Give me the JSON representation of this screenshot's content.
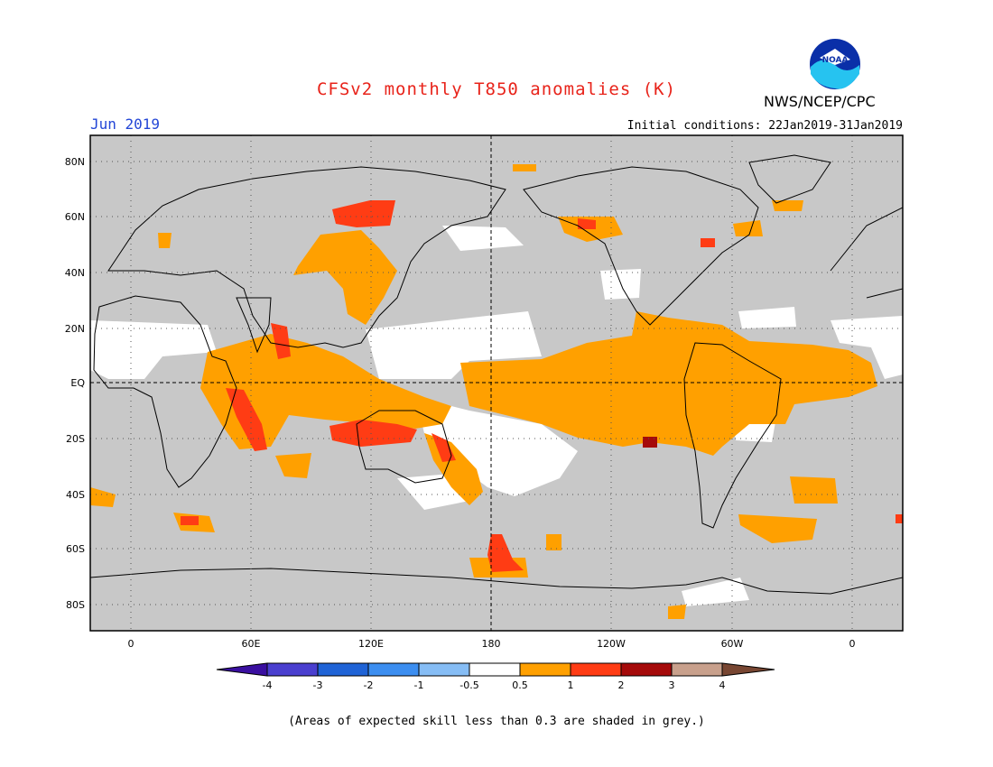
{
  "header": {
    "title": "CFSv2 monthly T850 anomalies (K)",
    "month": "Jun 2019",
    "initial_conditions": "Initial conditions: 22Jan2019-31Jan2019",
    "agency": "NWS/NCEP/CPC",
    "logo_text": "NOAA"
  },
  "map": {
    "lat_labels": [
      "80N",
      "60N",
      "40N",
      "20N",
      "EQ",
      "20S",
      "40S",
      "60S",
      "80S"
    ],
    "lon_labels": [
      "0",
      "60E",
      "120E",
      "180",
      "120W",
      "60W",
      "0"
    ]
  },
  "colorbar": {
    "tick_labels": [
      "-4",
      "-3",
      "-2",
      "-1",
      "-0.5",
      "0.5",
      "1",
      "2",
      "3",
      "4"
    ],
    "colors": [
      "#3a0fa0",
      "#4a3fcf",
      "#1f63d6",
      "#3c8ef0",
      "#86bdf5",
      "#ffffff",
      "#ffa000",
      "#ff3c14",
      "#a50a0a",
      "#c8a08c",
      "#784632"
    ]
  },
  "footnote": "(Areas of expected skill less than 0.3 are shaded in grey.)"
}
